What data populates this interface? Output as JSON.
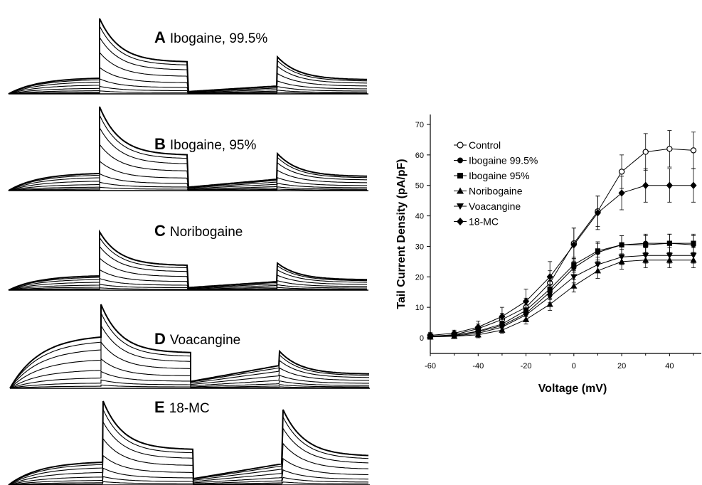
{
  "panels": [
    {
      "letter": "A",
      "name": "Ibogaine, 99.5%",
      "amp1": 106,
      "amp2": 52,
      "pre": 22,
      "mid": 11
    },
    {
      "letter": "B",
      "name": "Ibogaine, 95%",
      "amp1": 118,
      "amp2": 52,
      "pre": 24,
      "mid": 16
    },
    {
      "letter": "C",
      "name": "Noribogaine",
      "amp1": 82,
      "amp2": 38,
      "pre": 20,
      "mid": 12
    },
    {
      "letter": "D",
      "name": "Voacangine",
      "amp1": 118,
      "amp2": 52,
      "pre": 72,
      "mid": 32
    },
    {
      "letter": "E",
      "name": "18-MC",
      "amp1": 118,
      "amp2": 106,
      "pre": 32,
      "mid": 30
    }
  ],
  "chart_data": {
    "type": "line",
    "xlabel": "Voltage (mV)",
    "ylabel": "Tail Current Density (pA/pF)",
    "xlim": [
      -60,
      50
    ],
    "ylim": [
      -5,
      75
    ],
    "x_ticks": [
      -60,
      -40,
      -20,
      0,
      20,
      40
    ],
    "y_ticks": [
      0,
      10,
      20,
      30,
      40,
      50,
      60,
      70
    ],
    "legend_position": "top-left",
    "x": [
      -60,
      -50,
      -40,
      -30,
      -20,
      -10,
      0,
      10,
      20,
      30,
      40,
      50
    ],
    "series": [
      {
        "name": "Control",
        "marker": "open-circle",
        "values": [
          0.5,
          1.0,
          3.0,
          6.0,
          10.0,
          18.0,
          31.0,
          41.5,
          54.5,
          61.0,
          62.0,
          61.5
        ],
        "errors": [
          1.0,
          1.0,
          1.5,
          2.0,
          3.0,
          4.0,
          5.0,
          5.0,
          5.5,
          6.0,
          6.0,
          6.0
        ]
      },
      {
        "name": "Ibogaine 99.5%",
        "marker": "filled-circle",
        "values": [
          0.5,
          0.8,
          2.0,
          4.0,
          8.0,
          15.0,
          23.0,
          28.0,
          30.5,
          31.0,
          31.0,
          30.5
        ],
        "errors": [
          0.5,
          0.8,
          1.0,
          1.5,
          2.0,
          2.5,
          2.5,
          3.0,
          3.0,
          3.0,
          3.0,
          3.0
        ]
      },
      {
        "name": "Ibogaine 95%",
        "marker": "filled-square",
        "values": [
          0.5,
          0.8,
          2.2,
          4.5,
          9.0,
          16.0,
          24.0,
          28.5,
          30.5,
          30.5,
          31.0,
          31.0
        ],
        "errors": [
          0.5,
          0.8,
          1.0,
          1.5,
          2.0,
          2.5,
          2.5,
          3.0,
          3.0,
          3.0,
          3.0,
          3.0
        ]
      },
      {
        "name": "Noribogaine",
        "marker": "filled-triangle-up",
        "values": [
          0.3,
          0.5,
          1.0,
          2.5,
          6.0,
          11.0,
          17.0,
          22.0,
          25.0,
          25.5,
          25.5,
          25.5
        ],
        "errors": [
          0.5,
          0.5,
          1.0,
          1.0,
          1.5,
          2.0,
          2.0,
          2.5,
          2.5,
          2.5,
          2.5,
          2.5
        ]
      },
      {
        "name": "Voacangine",
        "marker": "filled-triangle-down",
        "values": [
          0.4,
          0.6,
          1.5,
          3.5,
          7.5,
          13.5,
          20.0,
          24.0,
          26.5,
          27.0,
          27.0,
          27.0
        ],
        "errors": [
          0.5,
          0.5,
          1.0,
          1.0,
          1.5,
          2.0,
          2.0,
          2.5,
          2.5,
          2.5,
          2.5,
          2.5
        ]
      },
      {
        "name": "18-MC",
        "marker": "filled-diamond",
        "values": [
          0.8,
          1.5,
          3.5,
          7.0,
          12.0,
          20.0,
          30.5,
          41.0,
          47.5,
          50.0,
          50.0,
          50.0
        ],
        "errors": [
          1.0,
          1.0,
          2.0,
          3.0,
          4.0,
          5.0,
          5.5,
          5.5,
          5.5,
          5.5,
          5.5,
          5.5
        ]
      }
    ]
  }
}
